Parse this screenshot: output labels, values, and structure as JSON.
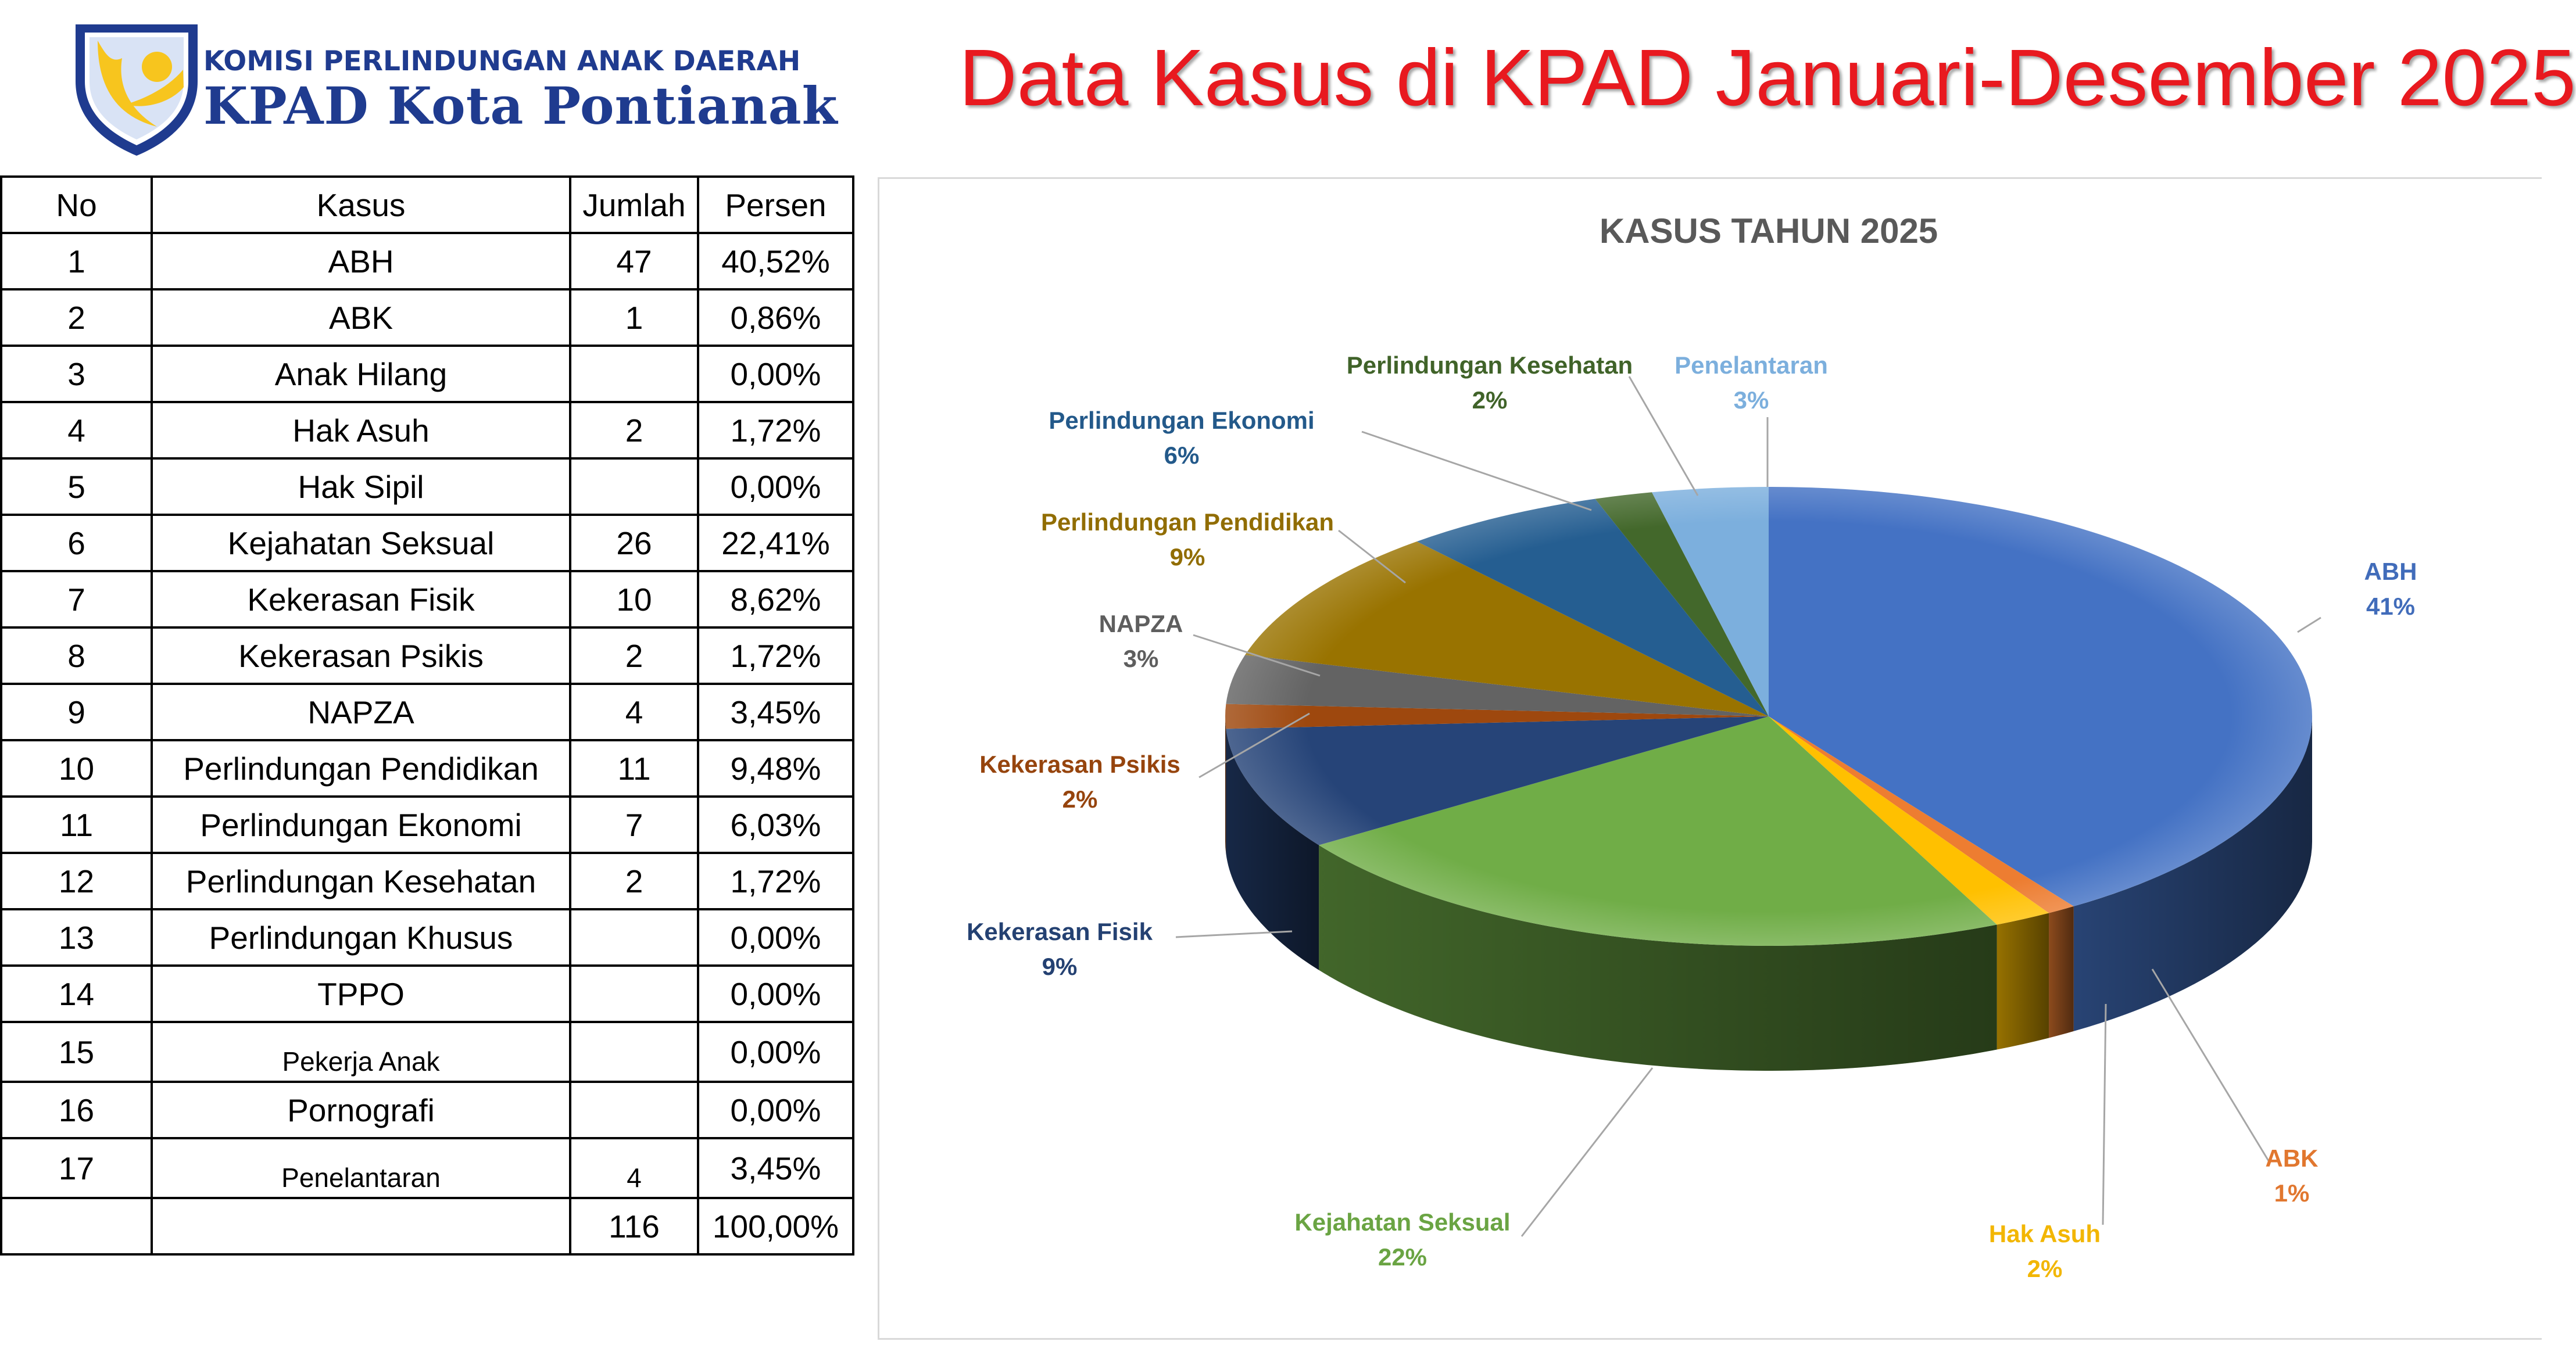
{
  "header": {
    "logo_subtitle": "KOMISI PERLINDUNGAN ANAK DAERAH",
    "logo_name": "KPAD Kota Pontianak",
    "title": "Data Kasus di KPAD Januari-Desember 2025"
  },
  "colors": {
    "title_red": "#e8191f",
    "logo_blue": "#1f3b8f",
    "logo_yellow": "#f7c51e"
  },
  "table": {
    "headers": [
      "No",
      "Kasus",
      "Jumlah",
      "Persen"
    ],
    "rows": [
      {
        "no": "1",
        "kasus": "ABH",
        "jumlah": "47",
        "persen": "40,52%"
      },
      {
        "no": "2",
        "kasus": "ABK",
        "jumlah": "1",
        "persen": "0,86%"
      },
      {
        "no": "3",
        "kasus": "Anak Hilang",
        "jumlah": "",
        "persen": "0,00%"
      },
      {
        "no": "4",
        "kasus": "Hak Asuh",
        "jumlah": "2",
        "persen": "1,72%"
      },
      {
        "no": "5",
        "kasus": "Hak Sipil",
        "jumlah": "",
        "persen": "0,00%"
      },
      {
        "no": "6",
        "kasus": "Kejahatan Seksual",
        "jumlah": "26",
        "persen": "22,41%"
      },
      {
        "no": "7",
        "kasus": "Kekerasan Fisik",
        "jumlah": "10",
        "persen": "8,62%"
      },
      {
        "no": "8",
        "kasus": "Kekerasan Psikis",
        "jumlah": "2",
        "persen": "1,72%"
      },
      {
        "no": "9",
        "kasus": "NAPZA",
        "jumlah": "4",
        "persen": "3,45%"
      },
      {
        "no": "10",
        "kasus": "Perlindungan Pendidikan",
        "jumlah": "11",
        "persen": "9,48%"
      },
      {
        "no": "11",
        "kasus": "Perlindungan Ekonomi",
        "jumlah": "7",
        "persen": "6,03%"
      },
      {
        "no": "12",
        "kasus": "Perlindungan Kesehatan",
        "jumlah": "2",
        "persen": "1,72%"
      },
      {
        "no": "13",
        "kasus": "Perlindungan Khusus",
        "jumlah": "",
        "persen": "0,00%"
      },
      {
        "no": "14",
        "kasus": "TPPO",
        "jumlah": "",
        "persen": "0,00%"
      },
      {
        "no": "15",
        "kasus": "Pekerja Anak",
        "jumlah": "",
        "persen": "0,00%"
      },
      {
        "no": "16",
        "kasus": "Pornografi",
        "jumlah": "",
        "persen": "0,00%"
      },
      {
        "no": "17",
        "kasus": "Penelantaran",
        "jumlah": "4",
        "persen": "3,45%"
      }
    ],
    "total": {
      "no": "",
      "kasus": "",
      "jumlah": "116",
      "persen": "100,00%"
    }
  },
  "chart_data": {
    "type": "pie",
    "title": "KASUS TAHUN 2025",
    "style": "3d",
    "slices": [
      {
        "label": "ABH",
        "value": 47,
        "pct_label": "41%",
        "color": "#4472c4"
      },
      {
        "label": "ABK",
        "value": 1,
        "pct_label": "1%",
        "color": "#ed7d31"
      },
      {
        "label": "Hak Asuh",
        "value": 2,
        "pct_label": "2%",
        "color": "#ffc000"
      },
      {
        "label": "Kejahatan Seksual",
        "value": 26,
        "pct_label": "22%",
        "color": "#70ad47"
      },
      {
        "label": "Kekerasan Fisik",
        "value": 10,
        "pct_label": "9%",
        "color": "#264478"
      },
      {
        "label": "Kekerasan Psikis",
        "value": 2,
        "pct_label": "2%",
        "color": "#9e480e"
      },
      {
        "label": "NAPZA",
        "value": 4,
        "pct_label": "3%",
        "color": "#636363"
      },
      {
        "label": "Perlindungan Pendidikan",
        "value": 11,
        "pct_label": "9%",
        "color": "#997300"
      },
      {
        "label": "Perlindungan Ekonomi",
        "value": 7,
        "pct_label": "6%",
        "color": "#255e91"
      },
      {
        "label": "Perlindungan Kesehatan",
        "value": 2,
        "pct_label": "2%",
        "color": "#43682b"
      },
      {
        "label": "Penelantaran",
        "value": 4,
        "pct_label": "3%",
        "color": "#7cafdd"
      }
    ]
  }
}
